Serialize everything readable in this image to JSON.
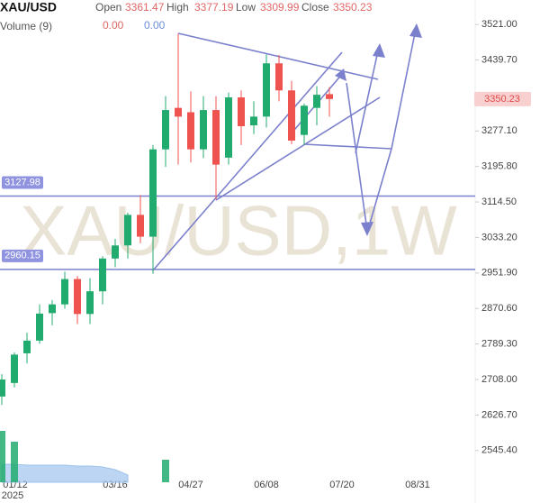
{
  "chart_data": {
    "type": "candlestick",
    "title": "XAU/USD",
    "watermark": "XAU/USD,1W",
    "header": [
      {
        "label": "Open",
        "value": 3361.47
      },
      {
        "label": "High",
        "value": 3377.19
      },
      {
        "label": "Low",
        "value": 3309.99
      },
      {
        "label": "Close",
        "value": 3350.23
      }
    ],
    "volume_legend": {
      "label": "Volume (9)",
      "values": [
        0,
        0
      ],
      "value_labels": [
        "0.00",
        "0.00"
      ],
      "colors": [
        "#e06666",
        "#6a8fd8"
      ]
    },
    "categories": [
      "01/12",
      null,
      null,
      null,
      null,
      null,
      null,
      null,
      null,
      "03/16",
      null,
      null,
      null,
      null,
      null,
      "04/27",
      null,
      null,
      null,
      null,
      null,
      "06/08",
      null,
      null,
      null,
      null,
      null,
      "07/20",
      null,
      null,
      null,
      null,
      null,
      "08/31"
    ],
    "year_label": "2025",
    "open": [
      2669,
      2700,
      2768,
      2797,
      2860,
      2880,
      2938,
      2858,
      2910,
      2985,
      3015,
      3085,
      3035,
      3235,
      3330,
      3320,
      3235,
      3325,
      3216,
      3354,
      3290,
      3310,
      3432,
      3370,
      3268,
      3330,
      3361.47,
      null,
      null,
      null,
      null,
      null,
      null,
      null
    ],
    "high": [
      2720,
      2770,
      2815,
      2880,
      2890,
      2955,
      2945,
      2940,
      2990,
      3030,
      3090,
      3130,
      3245,
      3357,
      3500,
      3368,
      3357,
      3357,
      3365,
      3370,
      3345,
      3452,
      3451,
      3392,
      3340,
      3380,
      3377.19,
      null,
      null,
      null,
      null,
      null,
      null,
      null
    ],
    "low": [
      2650,
      2690,
      2745,
      2790,
      2832,
      2870,
      2835,
      2835,
      2880,
      2965,
      2985,
      3020,
      2950,
      3195,
      3200,
      3205,
      3215,
      3120,
      3200,
      3245,
      3270,
      3285,
      3345,
      3247,
      3245,
      3290,
      3309.99,
      null,
      null,
      null,
      null,
      null,
      null,
      null
    ],
    "close": [
      2708,
      2765,
      2797,
      2859,
      2880,
      2938,
      2858,
      2910,
      2985,
      3015,
      3085,
      3035,
      3235,
      3325,
      3310,
      3235,
      3325,
      3200,
      3354,
      3288,
      3310,
      3432,
      3370,
      3255,
      3335,
      3360,
      3350.23,
      null,
      null,
      null,
      null,
      null,
      null,
      null
    ],
    "up_color": "#22ab6e",
    "down_color": "#ef5350",
    "volume": [
      57,
      45,
      null,
      null,
      null,
      null,
      null,
      null,
      null,
      null,
      null,
      null,
      null,
      25,
      null,
      null,
      null,
      null,
      null,
      null,
      null,
      null,
      null,
      null,
      null,
      null,
      null,
      null,
      null,
      null,
      null,
      null,
      null,
      null
    ],
    "volume_ma": [
      20,
      20,
      19,
      19,
      19,
      19,
      18,
      18,
      17,
      14,
      8,
      null,
      null,
      null,
      null,
      null,
      null,
      null,
      null,
      null,
      null,
      null,
      null,
      null,
      null,
      null,
      null,
      null,
      null,
      null,
      null,
      null,
      null,
      null
    ],
    "volume_ma_color": "#9ec3ec",
    "last_price": 3350.23,
    "price_lines": [
      {
        "value": 3127.98
      },
      {
        "value": 2960.15
      }
    ],
    "line_color": "#7b80cc",
    "ylim": [
      2483,
      3577
    ],
    "yticks": [
      {
        "value": 3521,
        "label": "3521.00"
      },
      {
        "value": 3439.7,
        "label": "3439.70"
      },
      {
        "value": 3277.1,
        "label": "3277.10"
      },
      {
        "value": 3195.8,
        "label": "3195.80"
      },
      {
        "value": 3114.5,
        "label": "3114.50"
      },
      {
        "value": 3033.2,
        "label": "3033.20"
      },
      {
        "value": 2951.9,
        "label": "2951.90"
      },
      {
        "value": 2870.6,
        "label": "2870.60"
      },
      {
        "value": 2789.3,
        "label": "2789.30"
      },
      {
        "value": 2708,
        "label": "2708.00"
      },
      {
        "value": 2626.7,
        "label": "2626.70"
      },
      {
        "value": 2545.4,
        "label": "2545.40"
      }
    ]
  }
}
